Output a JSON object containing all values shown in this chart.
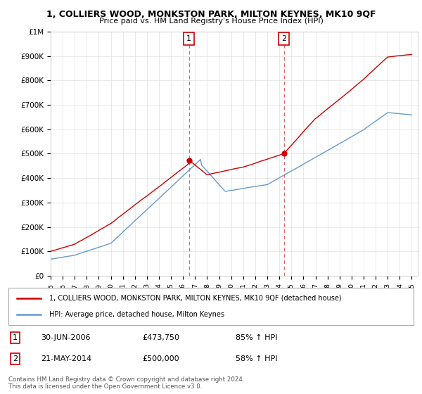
{
  "title": "1, COLLIERS WOOD, MONKSTON PARK, MILTON KEYNES, MK10 9QF",
  "subtitle": "Price paid vs. HM Land Registry's House Price Index (HPI)",
  "y_ticks": [
    0,
    100000,
    200000,
    300000,
    400000,
    500000,
    600000,
    700000,
    800000,
    900000,
    1000000
  ],
  "y_tick_labels": [
    "£0",
    "£100K",
    "£200K",
    "£300K",
    "£400K",
    "£500K",
    "£600K",
    "£700K",
    "£800K",
    "£900K",
    "£1M"
  ],
  "x_start_year": 1995,
  "x_end_year": 2025,
  "transaction1_date": 2006.5,
  "transaction1_price": 473750,
  "transaction1_label": "1",
  "transaction2_date": 2014.38,
  "transaction2_price": 500000,
  "transaction2_label": "2",
  "hpi_color": "#6699cc",
  "price_color": "#cc0000",
  "vline_color": "#cc0000",
  "background_color": "#ffffff",
  "grid_color": "#e0e0e0",
  "legend_label_price": "1, COLLIERS WOOD, MONKSTON PARK, MILTON KEYNES, MK10 9QF (detached house)",
  "legend_label_hpi": "HPI: Average price, detached house, Milton Keynes",
  "annotation1_box": "1",
  "annotation1_date": "30-JUN-2006",
  "annotation1_price": "£473,750",
  "annotation1_hpi": "85% ↑ HPI",
  "annotation2_box": "2",
  "annotation2_date": "21-MAY-2014",
  "annotation2_price": "£500,000",
  "annotation2_hpi": "58% ↑ HPI",
  "footer": "Contains HM Land Registry data © Crown copyright and database right 2024.\nThis data is licensed under the Open Government Licence v3.0."
}
